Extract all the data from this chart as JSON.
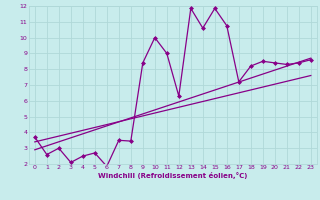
{
  "xlabel": "Windchill (Refroidissement éolien,°C)",
  "bg_color": "#c8ecec",
  "grid_color": "#b0d8d8",
  "line_color": "#880088",
  "xlim": [
    -0.5,
    23.5
  ],
  "ylim": [
    2,
    12
  ],
  "xticks": [
    0,
    1,
    2,
    3,
    4,
    5,
    6,
    7,
    8,
    9,
    10,
    11,
    12,
    13,
    14,
    15,
    16,
    17,
    18,
    19,
    20,
    21,
    22,
    23
  ],
  "yticks": [
    2,
    3,
    4,
    5,
    6,
    7,
    8,
    9,
    10,
    11,
    12
  ],
  "main_x": [
    0,
    1,
    2,
    3,
    4,
    5,
    6,
    7,
    8,
    9,
    10,
    11,
    12,
    13,
    14,
    15,
    16,
    17,
    18,
    19,
    20,
    21,
    22,
    23
  ],
  "main_y": [
    3.7,
    2.6,
    3.0,
    2.1,
    2.5,
    2.7,
    1.85,
    3.5,
    3.45,
    8.4,
    10.0,
    9.0,
    6.3,
    11.85,
    10.6,
    11.85,
    10.75,
    7.2,
    8.2,
    8.5,
    8.4,
    8.3,
    8.4,
    8.6
  ],
  "line1_x": [
    0,
    23
  ],
  "line1_y": [
    2.9,
    8.7
  ],
  "line2_x": [
    0,
    23
  ],
  "line2_y": [
    3.4,
    7.6
  ]
}
